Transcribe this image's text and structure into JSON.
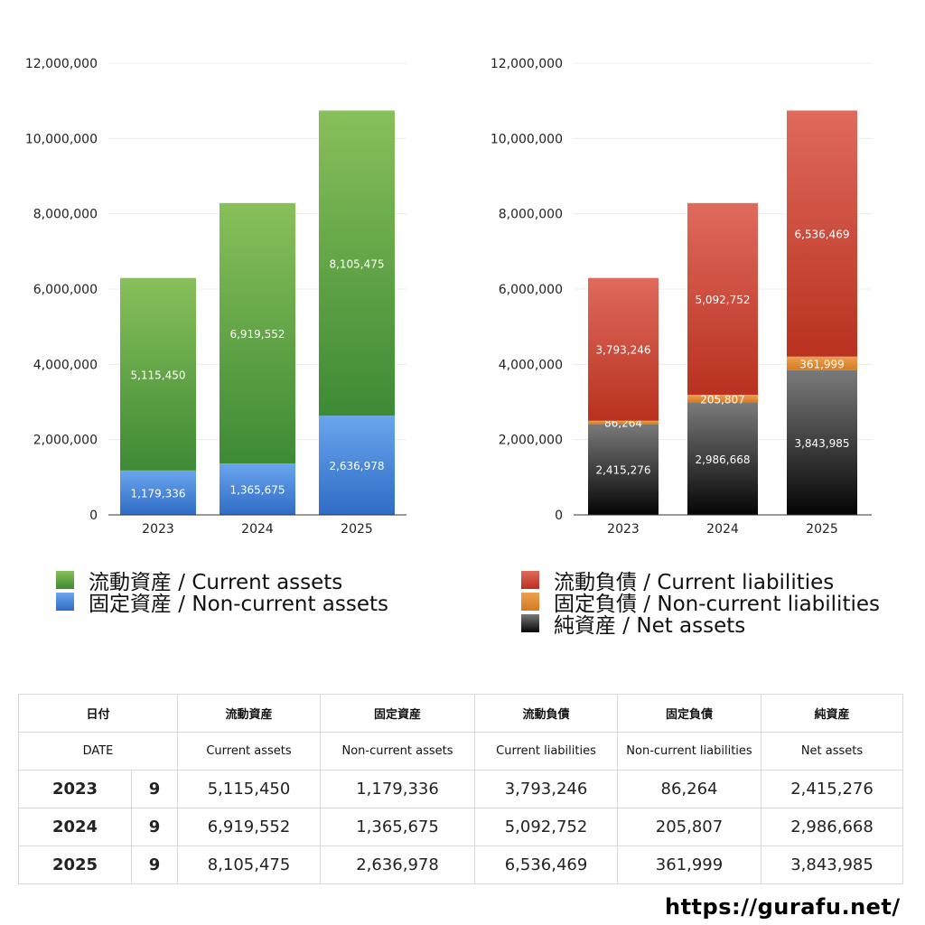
{
  "chart_data": [
    {
      "type": "bar",
      "stacked": true,
      "categories": [
        "2023",
        "2024",
        "2025"
      ],
      "ylim": [
        0,
        12000000
      ],
      "yticks": [
        "0",
        "2,000,000",
        "4,000,000",
        "6,000,000",
        "8,000,000",
        "10,000,000",
        "12,000,000"
      ],
      "grid": true,
      "series": [
        {
          "name": "固定資産 / Non-current assets",
          "values": [
            1179336,
            1365675,
            2636978
          ],
          "labels": [
            "1,179,336",
            "1,365,675",
            "2,636,978"
          ],
          "color": "#4a86d8",
          "color_light": "#6aa5ee",
          "color_dark": "#2f6cc4"
        },
        {
          "name": "流動資産 / Current assets",
          "values": [
            5115450,
            6919552,
            8105475
          ],
          "labels": [
            "5,115,450",
            "6,919,552",
            "8,105,475"
          ],
          "color": "#5faa45",
          "color_light": "#88c05a",
          "color_dark": "#3e8a35"
        }
      ],
      "legend_order": [
        1,
        0
      ]
    },
    {
      "type": "bar",
      "stacked": true,
      "categories": [
        "2023",
        "2024",
        "2025"
      ],
      "ylim": [
        0,
        12000000
      ],
      "yticks": [
        "0",
        "2,000,000",
        "4,000,000",
        "6,000,000",
        "8,000,000",
        "10,000,000",
        "12,000,000"
      ],
      "grid": true,
      "series": [
        {
          "name": "純資産 / Net assets",
          "values": [
            2415276,
            2986668,
            3843985
          ],
          "labels": [
            "2,415,276",
            "2,986,668",
            "3,843,985"
          ],
          "color": "#444444",
          "color_light": "#7a7a7a",
          "color_dark": "#050505"
        },
        {
          "name": "固定負債 / Non-current liabilities",
          "values": [
            86264,
            205807,
            361999
          ],
          "labels": [
            "86,264",
            "205,807",
            "361,999"
          ],
          "color": "#e08a30",
          "color_light": "#eda050",
          "color_dark": "#d67a20"
        },
        {
          "name": "流動負債 / Current liabilities",
          "values": [
            3793246,
            5092752,
            6536469
          ],
          "labels": [
            "3,793,246",
            "5,092,752",
            "6,536,469"
          ],
          "color": "#d04a3a",
          "color_light": "#df6a5c",
          "color_dark": "#b9311f"
        }
      ],
      "legend_order": [
        2,
        1,
        0
      ]
    }
  ],
  "table": {
    "header_ja": [
      "日付",
      "流動資産",
      "固定資産",
      "流動負債",
      "固定負債",
      "純資産"
    ],
    "header_en": [
      "DATE",
      "Current assets",
      "Non-current assets",
      "Current liabilities",
      "Non-current liabilities",
      "Net assets"
    ],
    "rows": [
      {
        "year": "2023",
        "month": "9",
        "values": [
          "5,115,450",
          "1,179,336",
          "3,793,246",
          "86,264",
          "2,415,276"
        ]
      },
      {
        "year": "2024",
        "month": "9",
        "values": [
          "6,919,552",
          "1,365,675",
          "5,092,752",
          "205,807",
          "2,986,668"
        ]
      },
      {
        "year": "2025",
        "month": "9",
        "values": [
          "8,105,475",
          "2,636,978",
          "6,536,469",
          "361,999",
          "3,843,985"
        ]
      }
    ]
  },
  "site_url": "https://gurafu.net/"
}
